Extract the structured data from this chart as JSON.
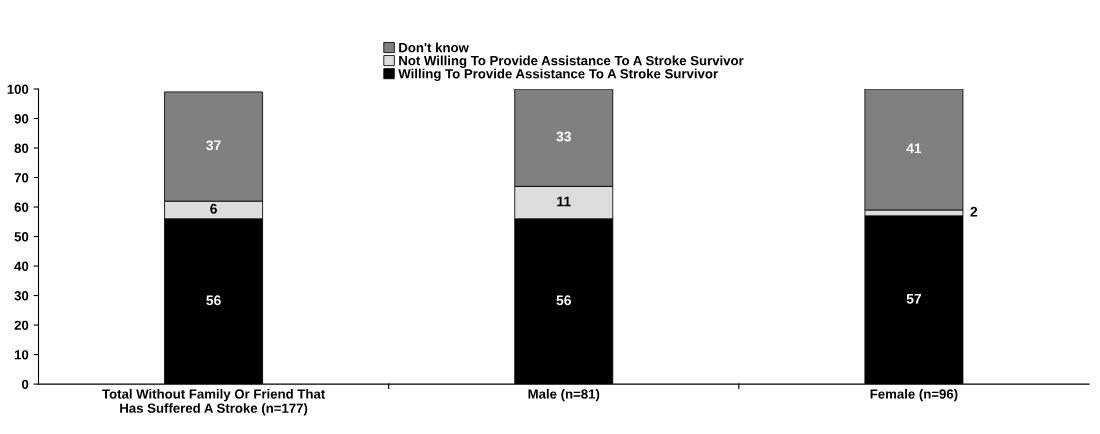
{
  "chart_data": {
    "type": "bar",
    "stacked": true,
    "categories": [
      "Total Without Family Or Friend That\nHas Suffered A Stroke (n=177)",
      "Male (n=81)",
      "Female (n=96)"
    ],
    "series": [
      {
        "name": "Willing To Provide Assistance To A Stroke Survivor",
        "color": "#000000",
        "values": [
          56,
          56,
          57
        ]
      },
      {
        "name": "Not Willing To Provide Assistance To A Stroke Survivor",
        "color": "#dddddd",
        "values": [
          6,
          11,
          2
        ]
      },
      {
        "name": "Don't know",
        "color": "#808080",
        "values": [
          37,
          33,
          41
        ]
      }
    ],
    "ylim": [
      0,
      100
    ],
    "yticks": [
      0,
      10,
      20,
      30,
      40,
      50,
      60,
      70,
      80,
      90,
      100
    ],
    "grid": false,
    "legend": "top",
    "data_labels": true
  }
}
